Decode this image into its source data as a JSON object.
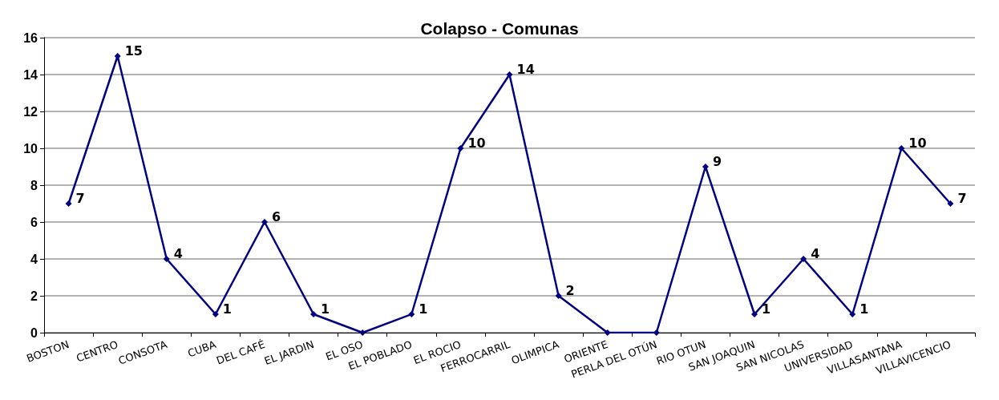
{
  "chart_data": {
    "type": "line",
    "title": "Colapso - Comunas",
    "categories": [
      "BOSTON",
      "CENTRO",
      "CONSOTA",
      "CUBA",
      "DEL CAFÉ",
      "EL JARDIN",
      "EL OSO",
      "EL POBLADO",
      "EL ROCIO",
      "FERROCARRIL",
      "OLIMPICA",
      "ORIENTE",
      "PERLA DEL OTÚN",
      "RIO OTUN",
      "SAN JOAQUIN",
      "SAN NICOLAS",
      "UNIVERSIDAD",
      "VILLASANTANA",
      "VILLAVICENCIO"
    ],
    "series": [
      {
        "color": "#000080",
        "values": [
          7,
          15,
          4,
          1,
          6,
          1,
          0,
          1,
          10,
          14,
          2,
          0,
          0,
          9,
          1,
          4,
          1,
          10,
          7
        ],
        "value_labels": [
          "7",
          "15",
          "4",
          "1",
          "6",
          "1",
          null,
          "1",
          "10",
          "14",
          "2",
          null,
          null,
          "9",
          "1",
          "4",
          "1",
          "10",
          "7"
        ]
      }
    ],
    "ylim": [
      0,
      16
    ],
    "yticks": [
      0,
      2,
      4,
      6,
      8,
      10,
      12,
      14,
      16
    ],
    "grid": "y",
    "marker": "diamond",
    "line_style": "solid"
  }
}
